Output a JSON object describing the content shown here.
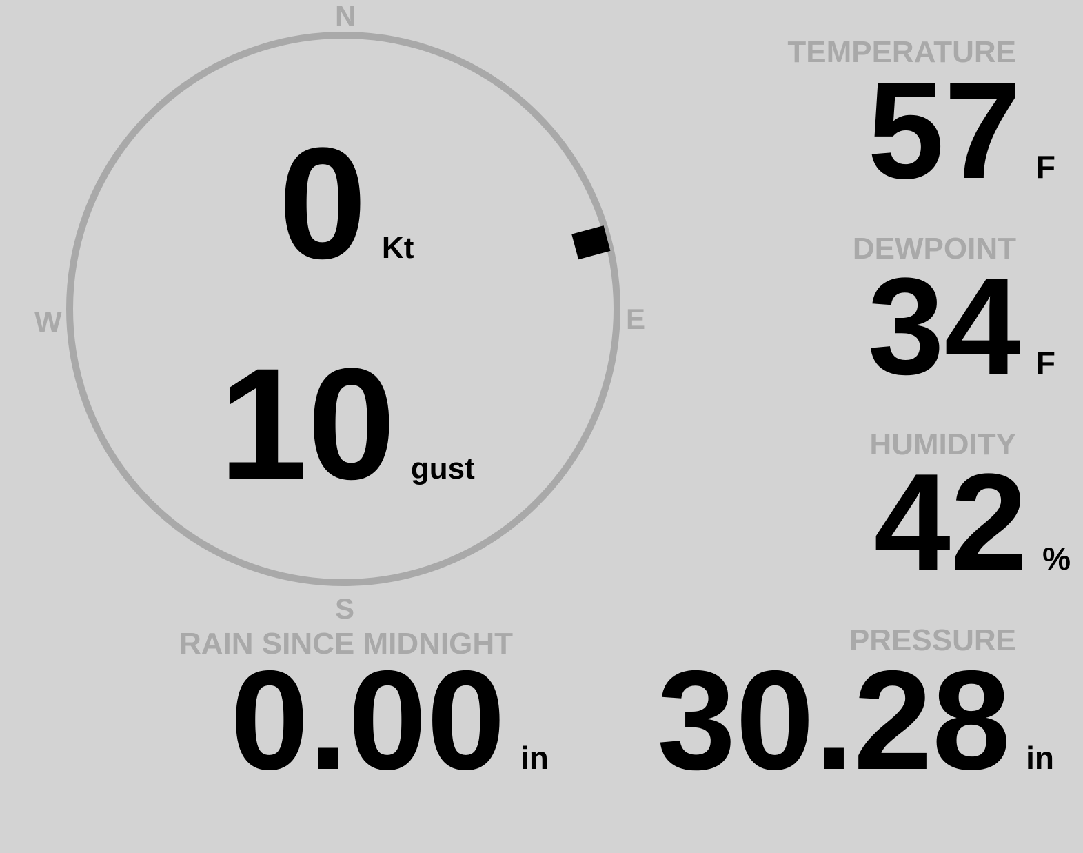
{
  "wind": {
    "speed": "0",
    "speed_unit": "Kt",
    "gust": "10",
    "gust_unit": "gust",
    "direction_deg": 75,
    "cardinals": {
      "n": "N",
      "e": "E",
      "s": "S",
      "w": "W"
    }
  },
  "temperature": {
    "label": "TEMPERATURE",
    "value": "57",
    "unit": "F"
  },
  "dewpoint": {
    "label": "DEWPOINT",
    "value": "34",
    "unit": "F"
  },
  "humidity": {
    "label": "HUMIDITY",
    "value": "42",
    "unit": "%"
  },
  "rain": {
    "label": "RAIN SINCE MIDNIGHT",
    "value": "0.00",
    "unit": "in"
  },
  "pressure": {
    "label": "PRESSURE",
    "value": "30.28",
    "unit": "in"
  },
  "colors": {
    "background": "#d3d3d3",
    "muted": "#a9a9a9",
    "value": "#000000"
  }
}
